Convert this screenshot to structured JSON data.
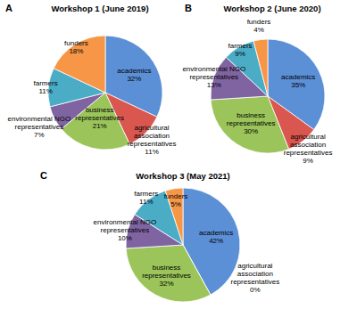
{
  "chart_data": [
    {
      "type": "pie",
      "title": "Workshop 1 (June 2019)",
      "panel_label": "A",
      "categories": [
        "academics",
        "agricultural association representatives",
        "business representatives",
        "environmental NGO representatives",
        "farmers",
        "funders"
      ],
      "values": [
        32,
        11,
        21,
        7,
        11,
        18
      ],
      "value_labels": [
        "32%",
        "11%",
        "21%",
        "7%",
        "11%",
        "18%"
      ],
      "colors": [
        "#5b8fd6",
        "#d9574f",
        "#9bc45a",
        "#8064a2",
        "#4bacc6",
        "#f79646"
      ],
      "data_labels": true
    },
    {
      "type": "pie",
      "title": "Workshop 2 (June 2020)",
      "panel_label": "B",
      "categories": [
        "academics",
        "agricultural association representatives",
        "business representatives",
        "environmental NGO representatives",
        "farmers",
        "funders"
      ],
      "values": [
        35,
        9,
        30,
        13,
        9,
        4
      ],
      "value_labels": [
        "35%",
        "9%",
        "30%",
        "13%",
        "9%",
        "4%"
      ],
      "colors": [
        "#5b8fd6",
        "#d9574f",
        "#9bc45a",
        "#8064a2",
        "#4bacc6",
        "#f79646"
      ],
      "data_labels": true
    },
    {
      "type": "pie",
      "title": "Workshop 3 (May 2021)",
      "panel_label": "C",
      "categories": [
        "academics",
        "agricultural association representatives",
        "business representatives",
        "environmental NGO representatives",
        "farmers",
        "funders"
      ],
      "values": [
        42,
        0,
        32,
        10,
        11,
        5
      ],
      "value_labels": [
        "42%",
        "0%",
        "32%",
        "10%",
        "11%",
        "5%"
      ],
      "colors": [
        "#5b8fd6",
        "#d9574f",
        "#9bc45a",
        "#8064a2",
        "#4bacc6",
        "#f79646"
      ],
      "data_labels": true
    }
  ]
}
